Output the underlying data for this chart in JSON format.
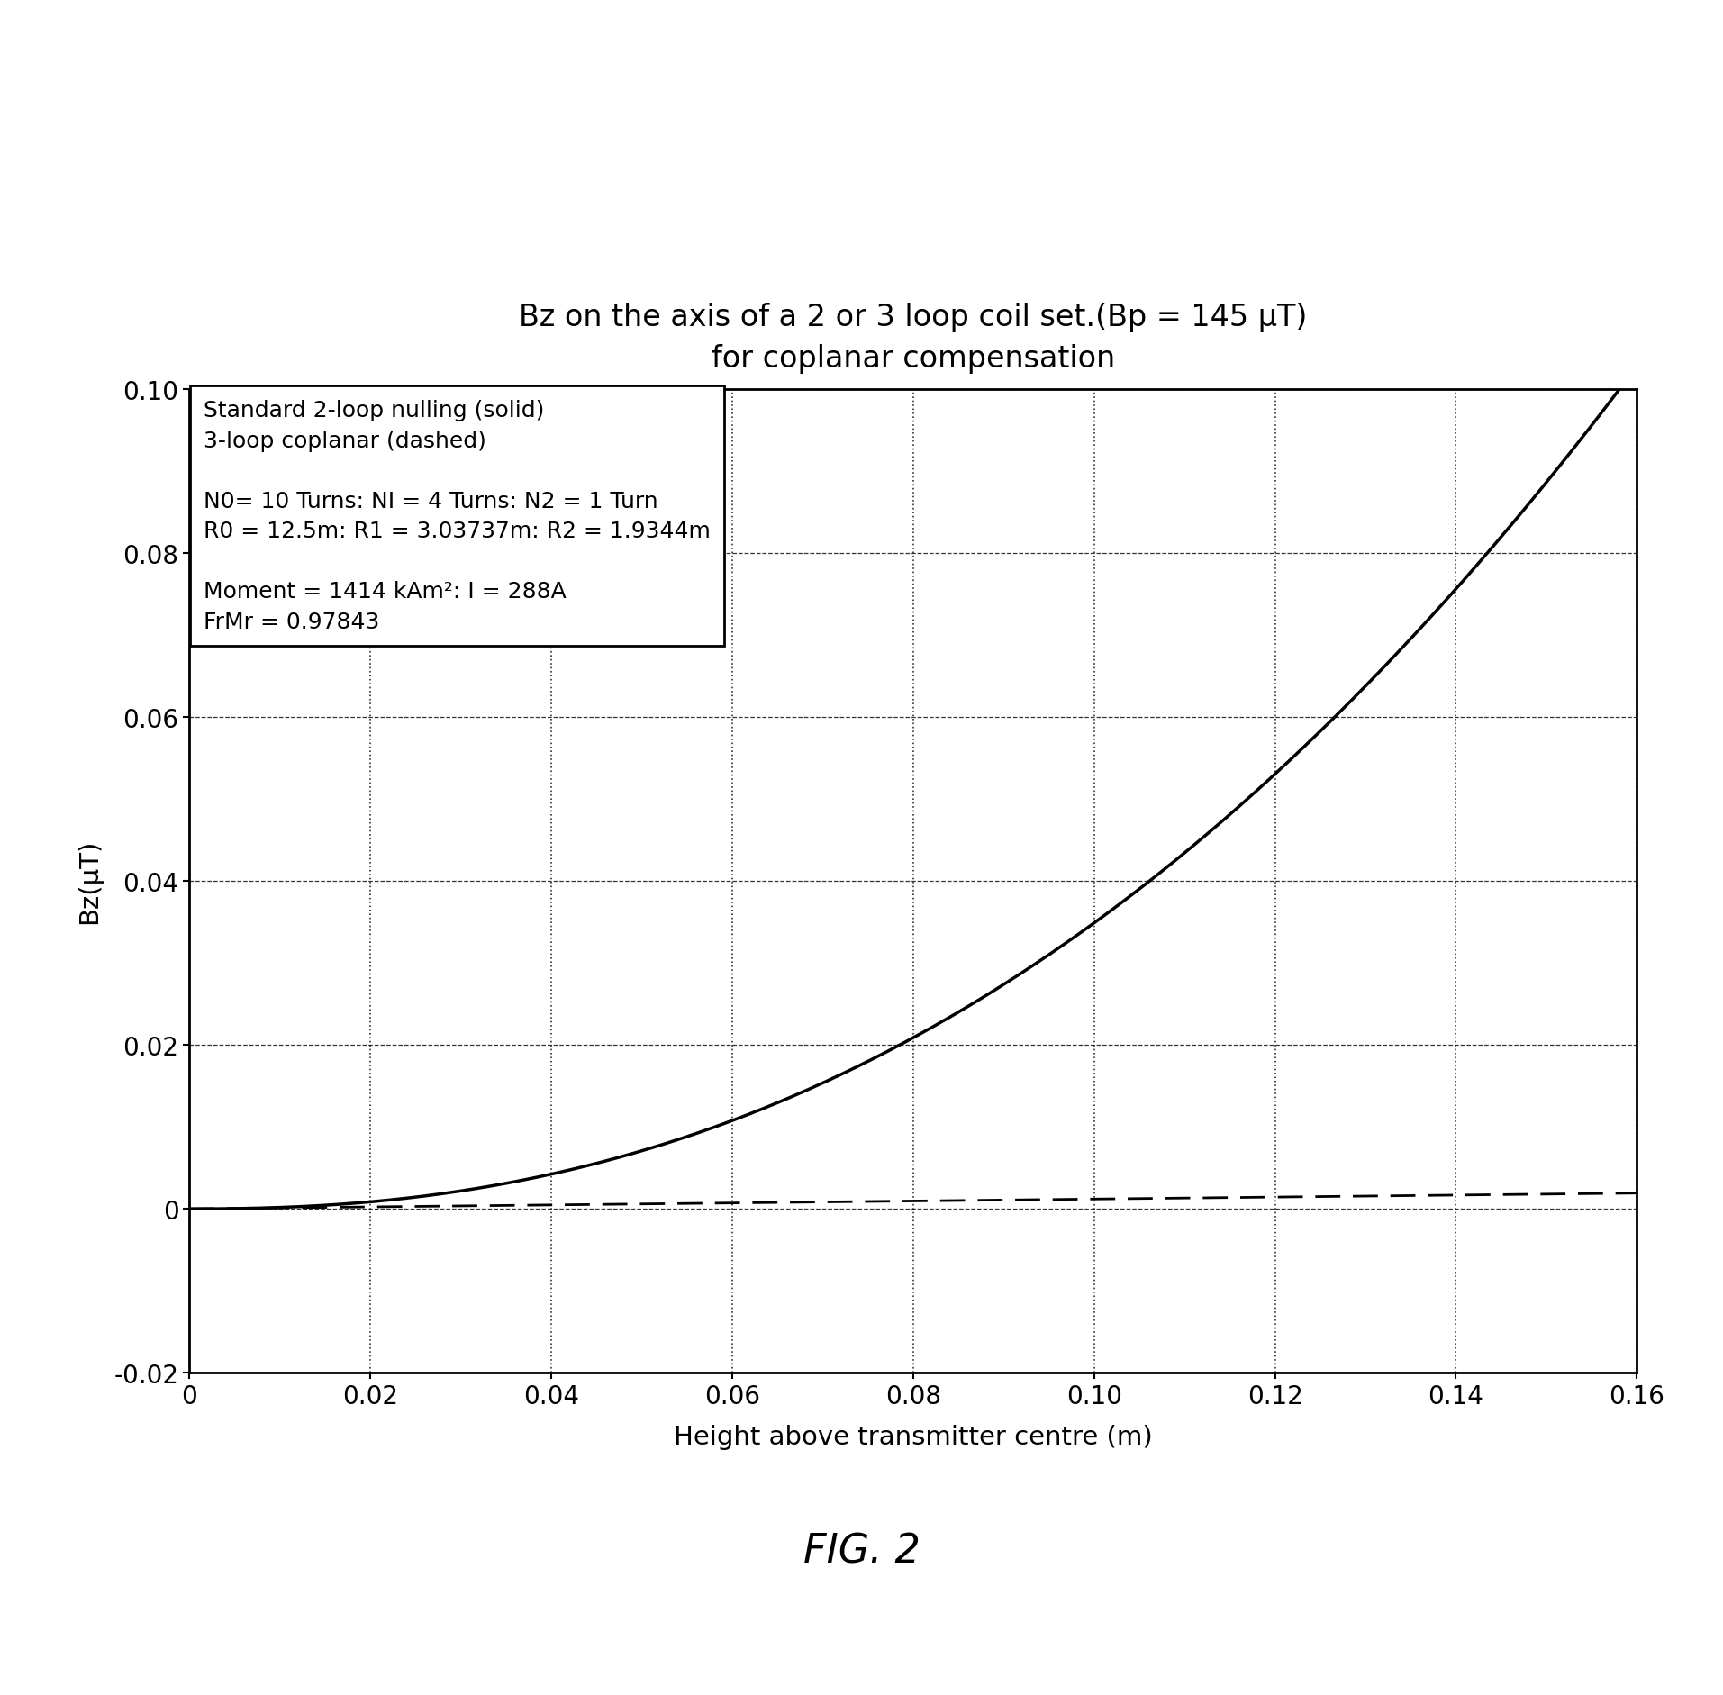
{
  "title_line1": "Bz on the axis of a 2 or 3 loop coil set.(Bp = 145 μT)",
  "title_line2": "for coplanar compensation",
  "xlabel": "Height above transmitter centre (m)",
  "ylabel": "Bz(μT)",
  "xlim": [
    0,
    0.16
  ],
  "ylim": [
    -0.02,
    0.1
  ],
  "xticks": [
    0,
    0.02,
    0.04,
    0.06,
    0.08,
    0.1,
    0.12,
    0.14,
    0.16
  ],
  "yticks": [
    -0.02,
    0.0,
    0.02,
    0.04,
    0.06,
    0.08,
    0.1
  ],
  "fig_caption": "FIG. 2",
  "legend_lines": [
    "Standard 2-loop nulling (solid)",
    "3-loop coplanar (dashed)",
    " ",
    "N0= 10 Turns: NI = 4 Turns: N2 = 1 Turn",
    "R0 = 12.5m: R1 = 3.03737m: R2 = 1.9344m",
    " ",
    "Moment = 1414 kAm²: I = 288A",
    "FrMr = 0.97843"
  ],
  "background_color": "#ffffff",
  "line_color": "#000000",
  "title_fontsize": 24,
  "axis_label_fontsize": 21,
  "tick_fontsize": 20,
  "caption_fontsize": 32,
  "legend_fontsize": 18
}
